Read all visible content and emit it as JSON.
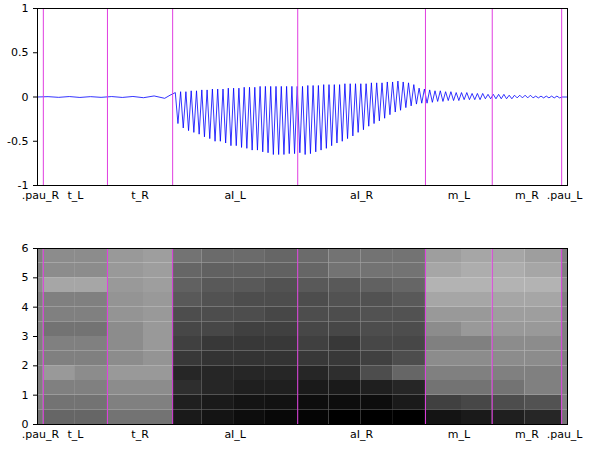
{
  "chart_data": [
    {
      "type": "line",
      "color": "#0000ff",
      "xlim": [
        0,
        1
      ],
      "ylim": [
        -1,
        1
      ],
      "yticks": [
        -1,
        -0.5,
        0,
        0.5,
        1
      ],
      "segments": [
        {
          "label": ".pau_R",
          "start": 0,
          "end": 0.011
        },
        {
          "label": "t_L",
          "start": 0.011,
          "end": 0.132
        },
        {
          "label": "t_R",
          "start": 0.132,
          "end": 0.255
        },
        {
          "label": "aI_L",
          "start": 0.255,
          "end": 0.491
        },
        {
          "label": "aI_R",
          "start": 0.491,
          "end": 0.732
        },
        {
          "label": "m_L",
          "start": 0.732,
          "end": 0.858
        },
        {
          "label": "m_R",
          "start": 0.858,
          "end": 0.989
        },
        {
          "label": ".pau_L",
          "start": 0.989,
          "end": 1
        }
      ],
      "x": [
        0,
        0.02,
        0.04,
        0.06,
        0.08,
        0.1,
        0.12,
        0.14,
        0.16,
        0.18,
        0.2,
        0.22,
        0.24,
        0.25,
        0.26,
        0.265,
        0.27,
        0.275,
        0.28,
        0.285,
        0.29,
        0.295,
        0.3,
        0.305,
        0.31,
        0.315,
        0.32,
        0.325,
        0.33,
        0.335,
        0.34,
        0.345,
        0.35,
        0.355,
        0.36,
        0.365,
        0.37,
        0.375,
        0.38,
        0.385,
        0.39,
        0.395,
        0.4,
        0.405,
        0.41,
        0.415,
        0.42,
        0.425,
        0.43,
        0.435,
        0.44,
        0.445,
        0.45,
        0.455,
        0.46,
        0.465,
        0.47,
        0.475,
        0.48,
        0.485,
        0.49,
        0.495,
        0.5,
        0.505,
        0.51,
        0.515,
        0.52,
        0.525,
        0.53,
        0.535,
        0.54,
        0.545,
        0.55,
        0.555,
        0.56,
        0.565,
        0.57,
        0.575,
        0.58,
        0.585,
        0.59,
        0.595,
        0.6,
        0.605,
        0.61,
        0.615,
        0.62,
        0.625,
        0.63,
        0.635,
        0.64,
        0.645,
        0.65,
        0.655,
        0.66,
        0.665,
        0.67,
        0.675,
        0.68,
        0.685,
        0.69,
        0.695,
        0.7,
        0.705,
        0.71,
        0.715,
        0.72,
        0.725,
        0.73,
        0.735,
        0.74,
        0.745,
        0.75,
        0.755,
        0.76,
        0.765,
        0.77,
        0.775,
        0.78,
        0.785,
        0.79,
        0.795,
        0.8,
        0.805,
        0.81,
        0.815,
        0.82,
        0.825,
        0.83,
        0.835,
        0.84,
        0.845,
        0.85,
        0.855,
        0.86,
        0.865,
        0.87,
        0.875,
        0.88,
        0.885,
        0.89,
        0.895,
        0.9,
        0.905,
        0.91,
        0.915,
        0.92,
        0.925,
        0.93,
        0.935,
        0.94,
        0.945,
        0.95,
        0.955,
        0.96,
        0.965,
        0.97,
        0.975,
        0.98,
        0.985,
        0.99,
        1
      ],
      "values": [
        0,
        0.004,
        -0.004,
        0.005,
        -0.005,
        0.004,
        -0.004,
        0.005,
        -0.005,
        0.006,
        -0.008,
        0.012,
        -0.015,
        0.02,
        0.05,
        -0.3,
        0.06,
        -0.35,
        0.06,
        -0.38,
        0.07,
        -0.4,
        0.07,
        -0.42,
        0.08,
        -0.45,
        0.08,
        -0.47,
        0.09,
        -0.5,
        0.09,
        -0.5,
        0.09,
        -0.52,
        0.1,
        -0.55,
        0.1,
        -0.55,
        0.1,
        -0.57,
        0.11,
        -0.58,
        0.11,
        -0.6,
        0.11,
        -0.6,
        0.12,
        -0.62,
        0.12,
        -0.63,
        0.12,
        -0.65,
        0.12,
        -0.65,
        0.12,
        -0.65,
        0.12,
        -0.64,
        0.12,
        -0.64,
        0.12,
        -0.63,
        0.12,
        -0.65,
        0.13,
        -0.64,
        0.13,
        -0.62,
        0.13,
        -0.6,
        0.14,
        -0.58,
        0.14,
        -0.55,
        0.14,
        -0.52,
        0.14,
        -0.5,
        0.15,
        -0.47,
        0.15,
        -0.44,
        0.15,
        -0.4,
        0.15,
        -0.37,
        0.15,
        -0.33,
        0.16,
        -0.3,
        0.16,
        -0.27,
        0.16,
        -0.24,
        0.17,
        -0.2,
        0.17,
        -0.17,
        0.18,
        -0.15,
        0.17,
        -0.12,
        0.16,
        -0.1,
        0.14,
        -0.08,
        0.1,
        -0.07,
        0.09,
        -0.07,
        0.08,
        -0.06,
        0.07,
        -0.05,
        0.07,
        -0.05,
        0.06,
        -0.04,
        0.06,
        -0.04,
        0.05,
        -0.04,
        0.05,
        -0.03,
        0.05,
        -0.03,
        0.04,
        -0.03,
        0.04,
        -0.03,
        0.04,
        -0.02,
        0.03,
        -0.02,
        0.03,
        -0.02,
        0.03,
        -0.02,
        0.03,
        -0.02,
        0.02,
        -0.02,
        0.02,
        -0.01,
        0.02,
        -0.01,
        0.02,
        -0.01,
        0.02,
        -0.01,
        0.01,
        -0.01,
        0.01,
        -0.01,
        0.01,
        -0.01,
        0.01,
        -0.01,
        0.01,
        -0.01,
        0,
        0
      ]
    },
    {
      "type": "heatmap",
      "xlim": [
        0,
        1
      ],
      "ylim": [
        0,
        6
      ],
      "yticks": [
        0,
        1,
        2,
        3,
        4,
        5,
        6
      ],
      "clim": [
        0,
        1
      ],
      "segments": [
        {
          "label": ".pau_R",
          "start": 0,
          "end": 0.011
        },
        {
          "label": "t_L",
          "start": 0.011,
          "end": 0.132
        },
        {
          "label": "t_R",
          "start": 0.132,
          "end": 0.255
        },
        {
          "label": "aI_L",
          "start": 0.255,
          "end": 0.491
        },
        {
          "label": "aI_R",
          "start": 0.491,
          "end": 0.732
        },
        {
          "label": "m_L",
          "start": 0.732,
          "end": 0.858
        },
        {
          "label": "m_R",
          "start": 0.858,
          "end": 0.989
        },
        {
          "label": ".pau_L",
          "start": 0.989,
          "end": 1
        }
      ],
      "x_edges": [
        0,
        0.011,
        0.07,
        0.132,
        0.2,
        0.255,
        0.31,
        0.37,
        0.43,
        0.491,
        0.55,
        0.61,
        0.67,
        0.732,
        0.8,
        0.858,
        0.92,
        0.989,
        1
      ],
      "y_edges": [
        0,
        0.5,
        1,
        1.5,
        2,
        2.5,
        3,
        3.5,
        4,
        4.5,
        5,
        5.5,
        6
      ],
      "cells": [
        [
          0.55,
          0.6,
          0.6,
          0.55,
          0.55,
          0.9,
          0.92,
          0.95,
          0.97,
          0.98,
          1,
          1,
          1,
          0.92,
          0.9,
          0.88,
          0.85,
          0.55
        ],
        [
          0.5,
          0.55,
          0.55,
          0.5,
          0.5,
          0.88,
          0.9,
          0.92,
          0.93,
          0.95,
          0.95,
          0.95,
          0.9,
          0.75,
          0.72,
          0.7,
          0.68,
          0.5
        ],
        [
          0.5,
          0.5,
          0.5,
          0.45,
          0.45,
          0.82,
          0.85,
          0.88,
          0.88,
          0.9,
          0.9,
          0.88,
          0.85,
          0.55,
          0.55,
          0.55,
          0.5,
          0.5
        ],
        [
          0.5,
          0.4,
          0.45,
          0.4,
          0.4,
          0.85,
          0.85,
          0.85,
          0.85,
          0.85,
          0.82,
          0.7,
          0.6,
          0.5,
          0.5,
          0.5,
          0.5,
          0.5
        ],
        [
          0.5,
          0.5,
          0.5,
          0.45,
          0.42,
          0.78,
          0.8,
          0.8,
          0.8,
          0.78,
          0.78,
          0.75,
          0.7,
          0.45,
          0.45,
          0.45,
          0.45,
          0.5
        ],
        [
          0.5,
          0.5,
          0.5,
          0.45,
          0.4,
          0.75,
          0.78,
          0.78,
          0.78,
          0.75,
          0.78,
          0.72,
          0.72,
          0.5,
          0.5,
          0.45,
          0.45,
          0.5
        ],
        [
          0.5,
          0.55,
          0.55,
          0.45,
          0.4,
          0.72,
          0.72,
          0.75,
          0.75,
          0.72,
          0.72,
          0.7,
          0.7,
          0.45,
          0.4,
          0.4,
          0.4,
          0.5
        ],
        [
          0.5,
          0.5,
          0.5,
          0.42,
          0.4,
          0.7,
          0.7,
          0.7,
          0.72,
          0.7,
          0.7,
          0.68,
          0.68,
          0.4,
          0.4,
          0.38,
          0.38,
          0.5
        ],
        [
          0.5,
          0.5,
          0.5,
          0.42,
          0.4,
          0.65,
          0.68,
          0.7,
          0.7,
          0.7,
          0.68,
          0.68,
          0.65,
          0.35,
          0.35,
          0.35,
          0.35,
          0.5
        ],
        [
          0.45,
          0.35,
          0.35,
          0.4,
          0.38,
          0.62,
          0.65,
          0.65,
          0.68,
          0.65,
          0.65,
          0.62,
          0.6,
          0.3,
          0.3,
          0.3,
          0.3,
          0.45
        ],
        [
          0.5,
          0.45,
          0.45,
          0.4,
          0.38,
          0.6,
          0.62,
          0.62,
          0.62,
          0.6,
          0.55,
          0.55,
          0.55,
          0.35,
          0.32,
          0.32,
          0.35,
          0.5
        ],
        [
          0.5,
          0.45,
          0.45,
          0.4,
          0.38,
          0.55,
          0.58,
          0.58,
          0.6,
          0.58,
          0.55,
          0.55,
          0.55,
          0.38,
          0.35,
          0.35,
          0.38,
          0.5
        ]
      ]
    }
  ]
}
